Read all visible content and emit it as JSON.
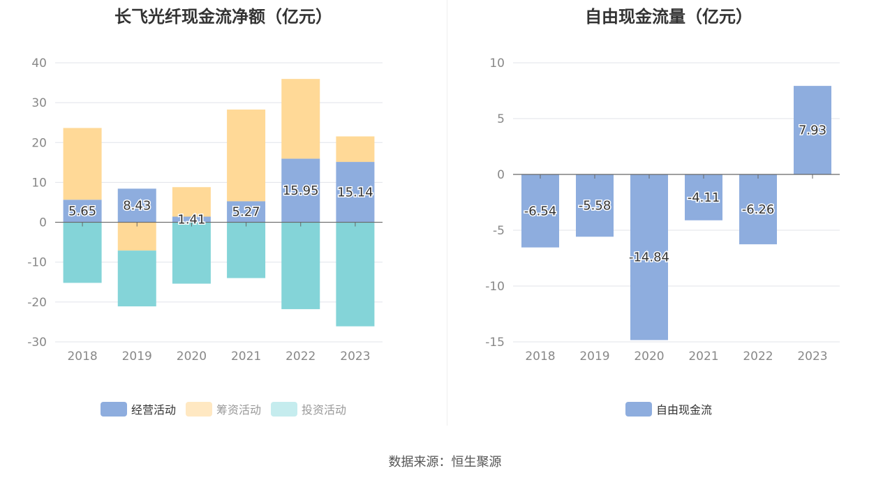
{
  "source_text": "数据来源：恒生聚源",
  "chart_data": [
    {
      "type": "bar",
      "stacked": true,
      "title": "长飞光纤现金流净额（亿元）",
      "categories": [
        "2018",
        "2019",
        "2020",
        "2021",
        "2022",
        "2023"
      ],
      "series": [
        {
          "name": "经营活动",
          "color": "#8eadde",
          "values": [
            5.65,
            8.43,
            1.41,
            5.27,
            15.95,
            15.14
          ],
          "labels": [
            "5.65",
            "8.43",
            "1.41",
            "5.27",
            "15.95",
            "15.14"
          ]
        },
        {
          "name": "筹资活动",
          "color": "#ffd997",
          "values": [
            18.0,
            -7.1,
            7.4,
            23.0,
            20.0,
            6.4
          ]
        },
        {
          "name": "投资活动",
          "color": "#84d4d8",
          "values": [
            -15.2,
            -14.0,
            -15.4,
            -14.0,
            -21.8,
            -26.1
          ]
        }
      ],
      "legend_colors": [
        "#8eadde",
        "#ffe8c2",
        "#c5ecee"
      ],
      "ylim": [
        -30,
        40
      ],
      "yticks": [
        -30,
        -20,
        -10,
        0,
        10,
        20,
        30,
        40
      ],
      "ytick_labels": [
        "-30",
        "-20",
        "-10",
        "0",
        "10",
        "20",
        "30",
        "40"
      ],
      "grid": true,
      "legend_position": "bottom"
    },
    {
      "type": "bar",
      "title": "自由现金流量（亿元）",
      "categories": [
        "2018",
        "2019",
        "2020",
        "2021",
        "2022",
        "2023"
      ],
      "series": [
        {
          "name": "自由现金流",
          "color": "#8eadde",
          "values": [
            -6.54,
            -5.58,
            -14.84,
            -4.11,
            -6.26,
            7.93
          ],
          "labels": [
            "-6.54",
            "-5.58",
            "-14.84",
            "-4.11",
            "-6.26",
            "7.93"
          ]
        }
      ],
      "legend_colors": [
        "#8eadde"
      ],
      "ylim": [
        -15,
        10
      ],
      "yticks": [
        -15,
        -10,
        -5,
        0,
        5,
        10
      ],
      "ytick_labels": [
        "-15",
        "-10",
        "-5",
        "0",
        "5",
        "10"
      ],
      "grid": true,
      "legend_position": "bottom"
    }
  ]
}
